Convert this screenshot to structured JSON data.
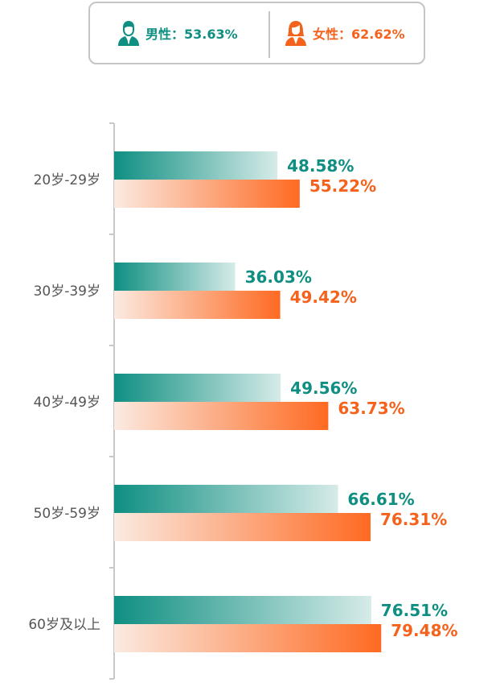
{
  "legend": {
    "male_label": "男性：53.63%",
    "female_label": "女性：62.62%",
    "male_icon": "male-user-icon",
    "female_icon": "female-user-icon"
  },
  "colors": {
    "male": "#0f8f82",
    "male_light": "#d6ebe8",
    "female": "#fe6a22",
    "female_light": "#fbeae1",
    "male_text": "#0f8f82",
    "female_text": "#f4621c",
    "axis": "#c8c8c8"
  },
  "chart_data": {
    "type": "bar",
    "orientation": "horizontal",
    "categories": [
      "20岁-29岁",
      "30岁-39岁",
      "40岁-49岁",
      "50岁-59岁",
      "60岁及以上"
    ],
    "series": [
      {
        "name": "男性",
        "values": [
          48.58,
          36.03,
          49.56,
          66.61,
          76.51
        ],
        "labels": [
          "48.58%",
          "36.03%",
          "49.56%",
          "66.61%",
          "76.51%"
        ]
      },
      {
        "name": "女性",
        "values": [
          55.22,
          49.42,
          63.73,
          76.31,
          79.48
        ],
        "labels": [
          "55.22%",
          "49.42%",
          "63.73%",
          "76.31%",
          "79.48%"
        ]
      }
    ],
    "xlim": [
      0,
      100
    ],
    "grid": false
  }
}
